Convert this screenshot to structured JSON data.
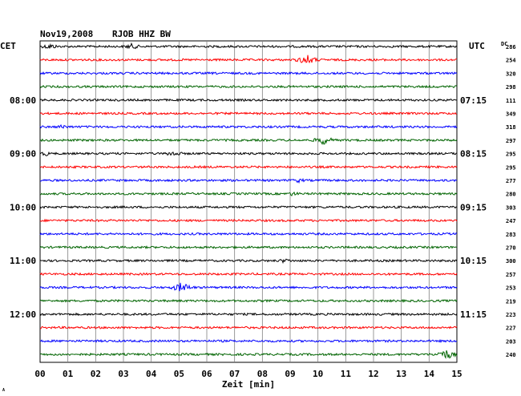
{
  "header": {
    "date": "Nov19,2008",
    "station": "RJOB HHZ BW",
    "left_tz": "CET",
    "right_tz": "UTC",
    "dc_label": "DC"
  },
  "footer": {
    "xlabel": "Zeit [min]",
    "corner_mark": "A"
  },
  "colors": {
    "trace_cycle": [
      "#000000",
      "#ff0000",
      "#0000ff",
      "#006400"
    ],
    "grid": "#808080"
  },
  "chart_data": {
    "type": "line",
    "title": "Nov19,2008  RJOB HHZ BW",
    "xlabel": "Zeit [min]",
    "xlim": [
      0,
      15
    ],
    "x_ticks": [
      "00",
      "01",
      "02",
      "03",
      "04",
      "05",
      "06",
      "07",
      "08",
      "09",
      "10",
      "11",
      "12",
      "13",
      "14",
      "15"
    ],
    "grid": true,
    "left_time_labels": [
      {
        "trace_index": 4,
        "label": "08:00"
      },
      {
        "trace_index": 8,
        "label": "09:00"
      },
      {
        "trace_index": 12,
        "label": "10:00"
      },
      {
        "trace_index": 16,
        "label": "11:00"
      },
      {
        "trace_index": 20,
        "label": "12:00"
      }
    ],
    "right_time_labels": [
      {
        "trace_index": 4,
        "label": "07:15"
      },
      {
        "trace_index": 8,
        "label": "08:15"
      },
      {
        "trace_index": 12,
        "label": "09:15"
      },
      {
        "trace_index": 16,
        "label": "10:15"
      },
      {
        "trace_index": 20,
        "label": "11:15"
      }
    ],
    "dc_offsets": [
      286,
      254,
      320,
      298,
      111,
      349,
      318,
      297,
      295,
      295,
      277,
      280,
      303,
      247,
      283,
      270,
      300,
      257,
      253,
      219,
      223,
      227,
      203,
      240
    ],
    "events": [
      {
        "trace": 0,
        "minute": 0.35,
        "amplitude": 4
      },
      {
        "trace": 0,
        "minute": 3.3,
        "amplitude": 4
      },
      {
        "trace": 1,
        "minute": 9.6,
        "amplitude": 7
      },
      {
        "trace": 6,
        "minute": 0.8,
        "amplitude": 3
      },
      {
        "trace": 7,
        "minute": 10.2,
        "amplitude": 6
      },
      {
        "trace": 8,
        "minute": 0.2,
        "amplitude": 3
      },
      {
        "trace": 8,
        "minute": 4.8,
        "amplitude": 4
      },
      {
        "trace": 10,
        "minute": 9.3,
        "amplitude": 3
      },
      {
        "trace": 11,
        "minute": 9.1,
        "amplitude": 3
      },
      {
        "trace": 16,
        "minute": 8.8,
        "amplitude": 3
      },
      {
        "trace": 18,
        "minute": 5.1,
        "amplitude": 7
      },
      {
        "trace": 23,
        "minute": 14.6,
        "amplitude": 7
      }
    ]
  }
}
